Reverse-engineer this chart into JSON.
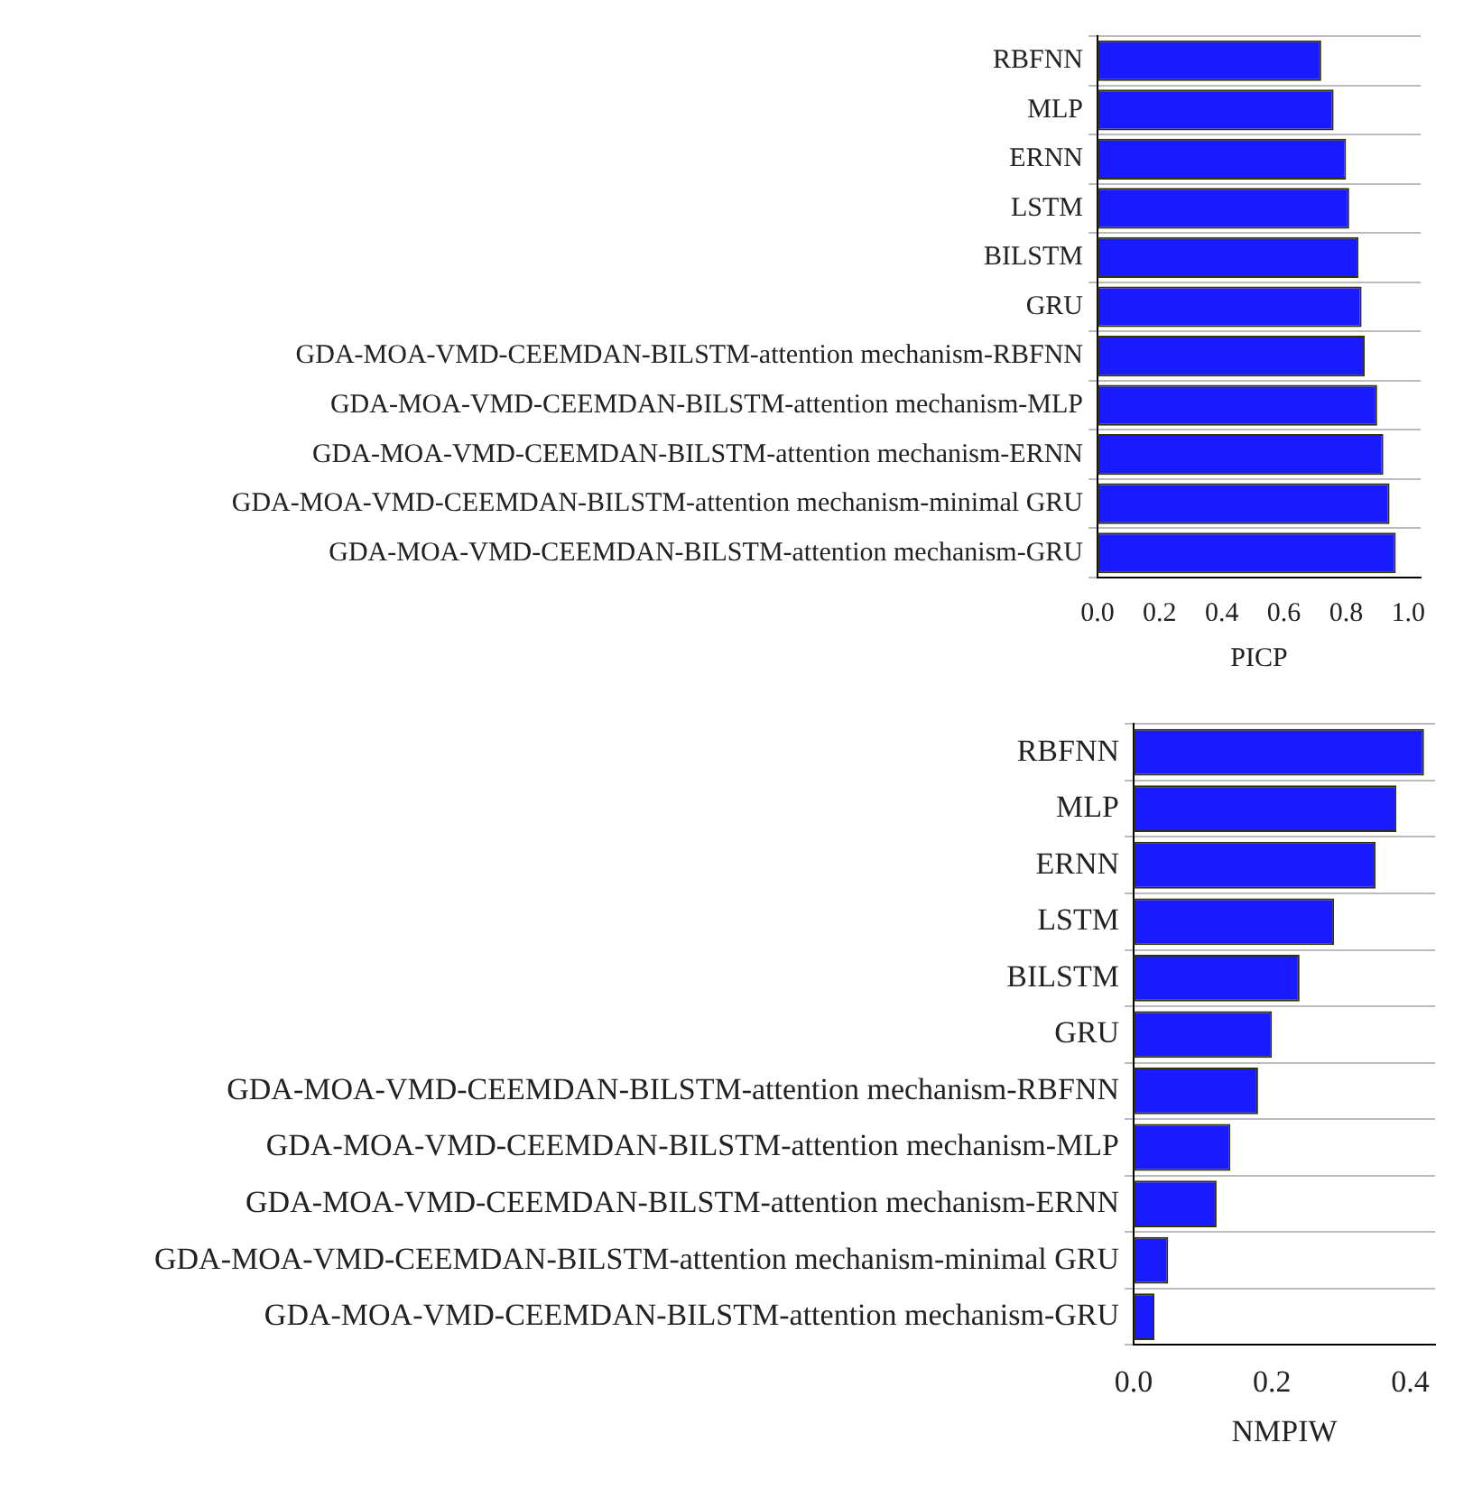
{
  "chart_data": [
    {
      "type": "bar",
      "orientation": "horizontal",
      "xlabel": "PICP",
      "categories": [
        "RBFNN",
        "MLP",
        "ERNN",
        "LSTM",
        "BILSTM",
        "GRU",
        "GDA-MOA-VMD-CEEMDAN-BILSTM-attention mechanism-RBFNN",
        "GDA-MOA-VMD-CEEMDAN-BILSTM-attention mechanism-MLP",
        "GDA-MOA-VMD-CEEMDAN-BILSTM-attention mechanism-ERNN",
        "GDA-MOA-VMD-CEEMDAN-BILSTM-attention mechanism-minimal GRU",
        "GDA-MOA-VMD-CEEMDAN-BILSTM-attention mechanism-GRU"
      ],
      "values": [
        0.72,
        0.76,
        0.8,
        0.81,
        0.84,
        0.85,
        0.86,
        0.9,
        0.92,
        0.94,
        0.96
      ],
      "color": "#1a1aff",
      "xlim": [
        0,
        1.04
      ],
      "xticks": [
        {
          "value": 0,
          "label": "0.0"
        },
        {
          "value": 0.2,
          "label": "0.2"
        },
        {
          "value": 0.4,
          "label": "0.4"
        },
        {
          "value": 0.6,
          "label": "0.6"
        },
        {
          "value": 0.8,
          "label": "0.8"
        },
        {
          "value": 1,
          "label": "1.0"
        }
      ],
      "grid": "y"
    },
    {
      "type": "bar",
      "orientation": "horizontal",
      "xlabel": "NMPIW",
      "categories": [
        "RBFNN",
        "MLP",
        "ERNN",
        "LSTM",
        "BILSTM",
        "GRU",
        "GDA-MOA-VMD-CEEMDAN-BILSTM-attention mechanism-RBFNN",
        "GDA-MOA-VMD-CEEMDAN-BILSTM-attention mechanism-MLP",
        "GDA-MOA-VMD-CEEMDAN-BILSTM-attention mechanism-ERNN",
        "GDA-MOA-VMD-CEEMDAN-BILSTM-attention mechanism-minimal GRU",
        "GDA-MOA-VMD-CEEMDAN-BILSTM-attention mechanism-GRU"
      ],
      "values": [
        0.42,
        0.38,
        0.35,
        0.29,
        0.24,
        0.2,
        0.18,
        0.14,
        0.12,
        0.05,
        0.03
      ],
      "color": "#1a1aff",
      "xlim": [
        0,
        0.436
      ],
      "xticks": [
        {
          "value": 0,
          "label": "0.0"
        },
        {
          "value": 0.2,
          "label": "0.2"
        },
        {
          "value": 0.4,
          "label": "0.4"
        }
      ],
      "grid": "y"
    }
  ]
}
